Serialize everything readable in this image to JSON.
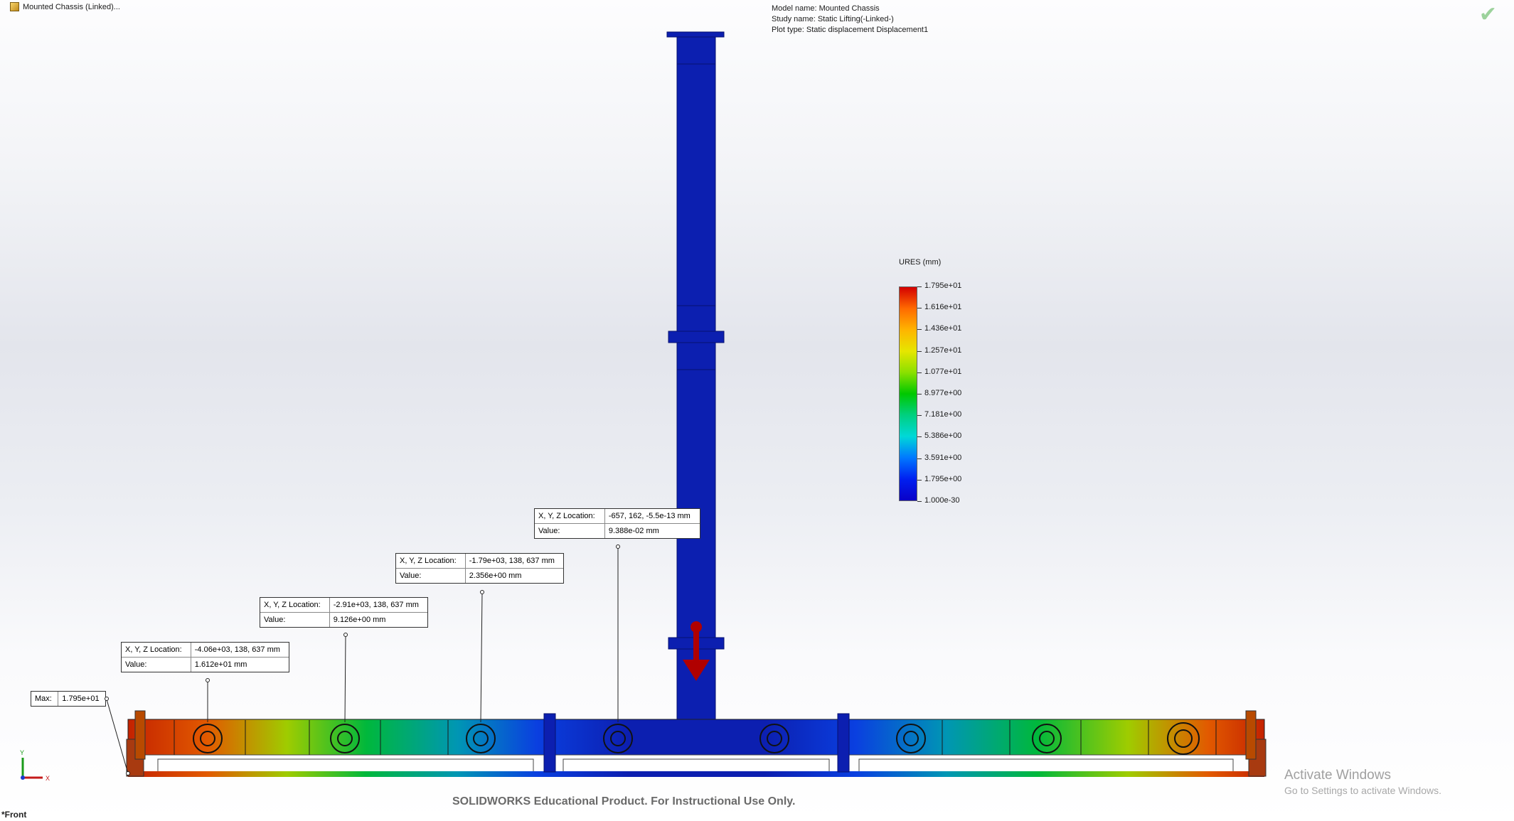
{
  "model_tree": {
    "item_label": "Mounted Chassis (Linked)..."
  },
  "plot_info": {
    "model_name": "Model name: Mounted Chassis",
    "study_name": "Study name: Static Lifting(-Linked-)",
    "plot_type": "Plot type: Static displacement Displacement1"
  },
  "legend": {
    "title": "URES (mm)",
    "values": [
      "1.795e+01",
      "1.616e+01",
      "1.436e+01",
      "1.257e+01",
      "1.077e+01",
      "8.977e+00",
      "7.181e+00",
      "5.386e+00",
      "3.591e+00",
      "1.795e+00",
      "1.000e-30"
    ]
  },
  "probes": [
    {
      "loc_label": "X, Y, Z Location:",
      "loc_value": "-657, 162, -5.5e-13 mm",
      "val_label": "Value:",
      "val_value": "9.388e-02 mm"
    },
    {
      "loc_label": "X, Y, Z Location:",
      "loc_value": "-1.79e+03, 138, 637 mm",
      "val_label": "Value:",
      "val_value": "2.356e+00 mm"
    },
    {
      "loc_label": "X, Y, Z Location:",
      "loc_value": "-2.91e+03, 138, 637 mm",
      "val_label": "Value:",
      "val_value": "9.126e+00 mm"
    },
    {
      "loc_label": "X, Y, Z Location:",
      "loc_value": "-4.06e+03, 138, 637 mm",
      "val_label": "Value:",
      "val_value": "1.612e+01 mm"
    }
  ],
  "max_probe": {
    "label": "Max:",
    "value": "1.795e+01"
  },
  "triad": {
    "y_label": "Y",
    "x_label": "X"
  },
  "view": {
    "label": "*Front"
  },
  "watermark": "SOLIDWORKS Educational Product. For Instructional Use Only.",
  "activate": {
    "title": "Activate Windows",
    "subtitle": "Go to Settings to activate Windows."
  },
  "colors": {
    "accent_blue": "#0c1fb0",
    "load_arrow": "#b00000"
  }
}
